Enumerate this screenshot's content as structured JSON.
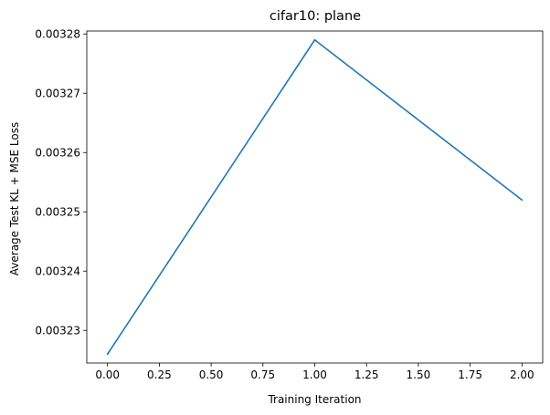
{
  "chart_data": {
    "type": "line",
    "title": "cifar10: plane",
    "xlabel": "Training Iteration",
    "ylabel": "Average Test KL + MSE Loss",
    "x": [
      0,
      1,
      2
    ],
    "series": [
      {
        "values": [
          0.003226,
          0.003279,
          0.003252
        ],
        "color": "#1f77b4"
      }
    ],
    "xlim": [
      -0.1,
      2.1
    ],
    "ylim": [
      0.0032245,
      0.0032805
    ],
    "xticks": [
      0.0,
      0.25,
      0.5,
      0.75,
      1.0,
      1.25,
      1.5,
      1.75,
      2.0
    ],
    "xtick_labels": [
      "0.00",
      "0.25",
      "0.50",
      "0.75",
      "1.00",
      "1.25",
      "1.50",
      "1.75",
      "2.00"
    ],
    "yticks": [
      0.00323,
      0.00324,
      0.00325,
      0.00326,
      0.00327,
      0.00328
    ],
    "ytick_labels": [
      "0.00323",
      "0.00324",
      "0.00325",
      "0.00326",
      "0.00327",
      "0.00328"
    ],
    "grid": false,
    "legend": "none"
  }
}
